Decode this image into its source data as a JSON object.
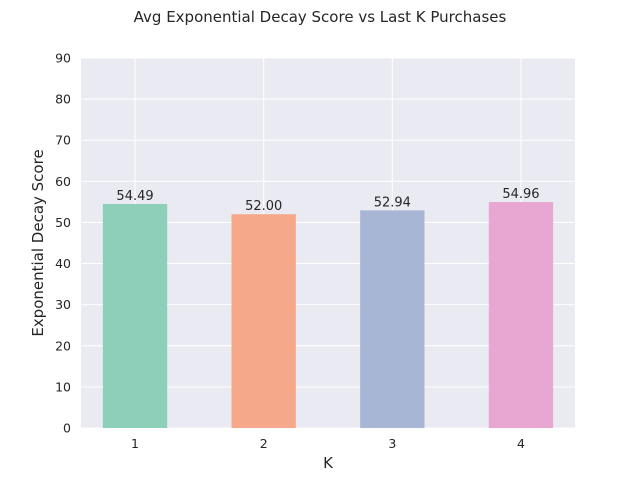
{
  "chart_data": {
    "type": "bar",
    "title": "Avg Exponential Decay Score vs Last K Purchases",
    "xlabel": "K",
    "ylabel": "Exponential Decay Score",
    "categories": [
      "1",
      "2",
      "3",
      "4"
    ],
    "values": [
      54.49,
      52.0,
      52.94,
      54.96
    ],
    "data_labels": [
      "54.49",
      "52.00",
      "52.94",
      "54.96"
    ],
    "colors": [
      "#8ecfba",
      "#f5a88a",
      "#a8b6d6",
      "#e8a6d2"
    ],
    "ylim": [
      0,
      90
    ],
    "yticks": [
      0,
      10,
      20,
      30,
      40,
      50,
      60,
      70,
      80,
      90
    ],
    "grid": true,
    "background": "#eaeaf2",
    "grid_color": "#ffffff"
  }
}
